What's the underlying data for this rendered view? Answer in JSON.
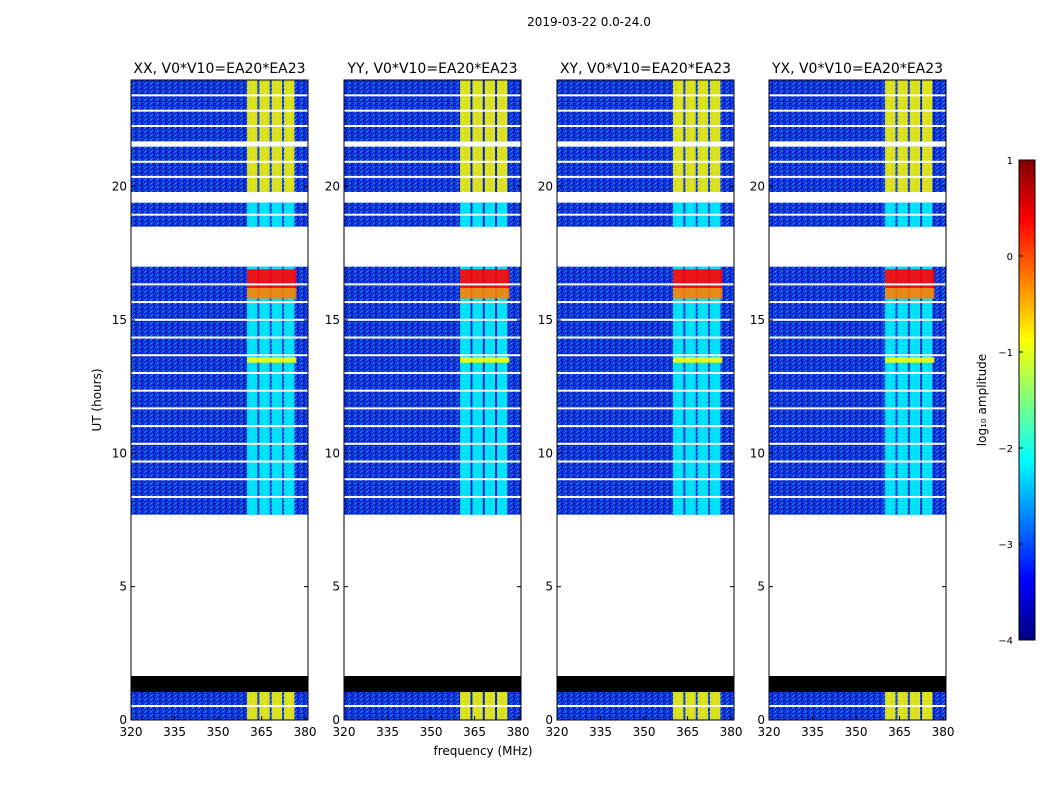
{
  "figure_title": "2019-03-22 0.0-24.0",
  "x_axis_label": "frequency (MHz)",
  "y_axis_label": "UT (hours)",
  "colorbar_label": "log₁₀ amplitude",
  "colors": {
    "background": "#ffffff",
    "flagged_black": "#000000",
    "colormap": [
      "#00007f",
      "#0000ff",
      "#007fff",
      "#00ffff",
      "#7fff7f",
      "#ffff00",
      "#ff7f00",
      "#ff0000",
      "#7f0000"
    ]
  },
  "chart_data": [
    {
      "type": "heatmap",
      "title": "XX, V0*V10=EA20*EA23",
      "xlim": [
        320,
        381
      ],
      "xticks": [
        320,
        335,
        350,
        365,
        380
      ],
      "ylim": [
        0,
        24
      ],
      "yticks": [
        0,
        5,
        10,
        15,
        20
      ],
      "show_ylabel": true,
      "show_xlabel": false,
      "bright_band_mhz": [
        360,
        377
      ],
      "data_segments_hours": [
        [
          0,
          1.05
        ],
        [
          7.7,
          17.0
        ],
        [
          18.5,
          19.4
        ],
        [
          19.8,
          21.5
        ],
        [
          21.7,
          24
        ]
      ],
      "flagged_black_hours": [
        [
          1.05,
          1.65
        ]
      ]
    },
    {
      "type": "heatmap",
      "title": "YY, V0*V10=EA20*EA23",
      "xlim": [
        320,
        381
      ],
      "xticks": [
        320,
        335,
        350,
        365,
        380
      ],
      "ylim": [
        0,
        24
      ],
      "yticks": [
        0,
        5,
        10,
        15,
        20
      ],
      "show_ylabel": false,
      "show_xlabel": true,
      "bright_band_mhz": [
        360,
        377
      ],
      "data_segments_hours": [
        [
          0,
          1.05
        ],
        [
          7.7,
          17.0
        ],
        [
          18.5,
          19.4
        ],
        [
          19.8,
          21.5
        ],
        [
          21.7,
          24
        ]
      ],
      "flagged_black_hours": [
        [
          1.05,
          1.65
        ]
      ]
    },
    {
      "type": "heatmap",
      "title": "XY, V0*V10=EA20*EA23",
      "xlim": [
        320,
        381
      ],
      "xticks": [
        320,
        335,
        350,
        365,
        380
      ],
      "ylim": [
        0,
        24
      ],
      "yticks": [
        0,
        5,
        10,
        15,
        20
      ],
      "show_ylabel": false,
      "show_xlabel": false,
      "bright_band_mhz": [
        360,
        377
      ],
      "data_segments_hours": [
        [
          0,
          1.05
        ],
        [
          7.7,
          17.0
        ],
        [
          18.5,
          19.4
        ],
        [
          19.8,
          21.5
        ],
        [
          21.7,
          24
        ]
      ],
      "flagged_black_hours": [
        [
          1.05,
          1.65
        ]
      ]
    },
    {
      "type": "heatmap",
      "title": "YX, V0*V10=EA20*EA23",
      "xlim": [
        320,
        381
      ],
      "xticks": [
        320,
        335,
        350,
        365,
        380
      ],
      "ylim": [
        0,
        24
      ],
      "yticks": [
        0,
        5,
        10,
        15,
        20
      ],
      "show_ylabel": false,
      "show_xlabel": false,
      "bright_band_mhz": [
        360,
        377
      ],
      "data_segments_hours": [
        [
          0,
          1.05
        ],
        [
          7.7,
          17.0
        ],
        [
          18.5,
          19.4
        ],
        [
          19.8,
          21.5
        ],
        [
          21.7,
          24
        ]
      ],
      "flagged_black_hours": [
        [
          1.05,
          1.65
        ]
      ]
    }
  ],
  "colorbar": {
    "range": [
      -4,
      1
    ],
    "ticks": [
      1,
      0,
      -1,
      -2,
      -3,
      -4
    ],
    "tick_labels": [
      "1",
      "0",
      "−1",
      "−2",
      "−3",
      "−4"
    ]
  }
}
